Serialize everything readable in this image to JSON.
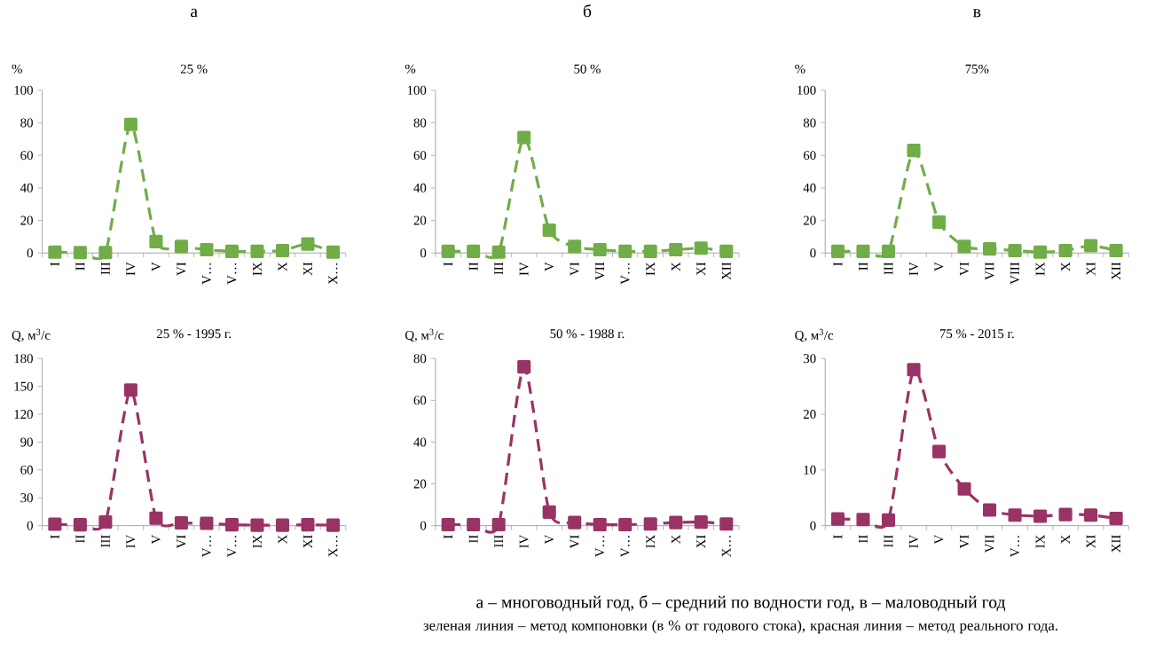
{
  "chart_data": [
    {
      "type": "line",
      "title": "а",
      "subtitle": "25 %",
      "ylabel": "%",
      "categories": [
        "I",
        "II",
        "III",
        "IV",
        "V",
        "VI",
        "V…",
        "V…",
        "IX",
        "X",
        "XI",
        "X…"
      ],
      "series": [
        {
          "color": "#70ad47",
          "values": [
            0.5,
            0.3,
            0.3,
            79,
            7,
            4,
            2,
            1,
            1,
            1.5,
            5.5,
            0.5
          ]
        }
      ],
      "ylim": [
        0,
        100
      ],
      "yticks": [
        0,
        20,
        40,
        60,
        80,
        100
      ],
      "marker": "square",
      "line_style": "dashed"
    },
    {
      "type": "line",
      "title": "б",
      "subtitle": "50 %",
      "ylabel": "%",
      "categories": [
        "I",
        "II",
        "III",
        "IV",
        "V",
        "VI",
        "VII",
        "V…",
        "IX",
        "X",
        "XI",
        "XII"
      ],
      "series": [
        {
          "color": "#70ad47",
          "values": [
            1,
            1,
            0.5,
            71,
            14,
            4,
            2,
            1,
            1,
            2,
            3,
            1
          ]
        }
      ],
      "ylim": [
        0,
        100
      ],
      "yticks": [
        0,
        20,
        40,
        60,
        80,
        100
      ],
      "marker": "square",
      "line_style": "dashed"
    },
    {
      "type": "line",
      "title": "в",
      "subtitle": "75%",
      "ylabel": "%",
      "categories": [
        "I",
        "II",
        "III",
        "IV",
        "V",
        "VI",
        "VII",
        "VIII",
        "IX",
        "X",
        "XI",
        "XII"
      ],
      "series": [
        {
          "color": "#70ad47",
          "values": [
            1,
            1,
            1,
            63,
            19,
            4,
            2.5,
            1.5,
            0.5,
            1.5,
            4.5,
            1.5
          ]
        }
      ],
      "ylim": [
        0,
        100
      ],
      "yticks": [
        0,
        20,
        40,
        60,
        80,
        100
      ],
      "marker": "square",
      "line_style": "dashed"
    },
    {
      "type": "line",
      "title": "25 % - 1995 г.",
      "ylabel": "Q, м$^{3}$/с",
      "categories": [
        "I",
        "II",
        "III",
        "IV",
        "V",
        "VI",
        "V…",
        "V…",
        "IX",
        "X",
        "XI",
        "X…"
      ],
      "series": [
        {
          "color": "#993366",
          "values": [
            1.5,
            1,
            4,
            146,
            8,
            3,
            2.5,
            1,
            0.5,
            0.5,
            1,
            0.5
          ]
        }
      ],
      "ylim": [
        0,
        180
      ],
      "yticks": [
        0,
        30,
        60,
        90,
        120,
        150,
        180
      ],
      "marker": "square",
      "line_style": "dashed"
    },
    {
      "type": "line",
      "title": "50 % - 1988 г.",
      "ylabel": "Q, м$^{3}$/с",
      "categories": [
        "I",
        "II",
        "III",
        "IV",
        "V",
        "VI",
        "V…",
        "V…",
        "IX",
        "X",
        "XI",
        "X…"
      ],
      "series": [
        {
          "color": "#993366",
          "values": [
            0.5,
            0.5,
            0.5,
            76,
            6.5,
            1.5,
            0.5,
            0.5,
            0.8,
            1.5,
            1.7,
            0.8
          ]
        }
      ],
      "ylim": [
        0,
        80
      ],
      "yticks": [
        0,
        20,
        40,
        60,
        80
      ],
      "marker": "square",
      "line_style": "dashed"
    },
    {
      "type": "line",
      "title": "75 % - 2015 г.",
      "ylabel": "Q, м$^{3}$/с",
      "categories": [
        "I",
        "II",
        "III",
        "IV",
        "V",
        "VI",
        "VII",
        "V…",
        "IX",
        "X",
        "XI",
        "XII"
      ],
      "series": [
        {
          "color": "#993366",
          "values": [
            1.2,
            1.1,
            1.0,
            28,
            13.3,
            6.6,
            2.8,
            1.9,
            1.7,
            2.0,
            1.9,
            1.3
          ]
        }
      ],
      "ylim": [
        0,
        30
      ],
      "yticks": [
        0,
        10,
        20,
        30
      ],
      "marker": "square",
      "line_style": "dashed",
      "annotations": [
        "а – многоводный год, б – средний по водности год, в – маловодный год",
        "зеленая линия – метод компоновки (в % от годового стока), красная линия – метод реального года."
      ]
    }
  ]
}
